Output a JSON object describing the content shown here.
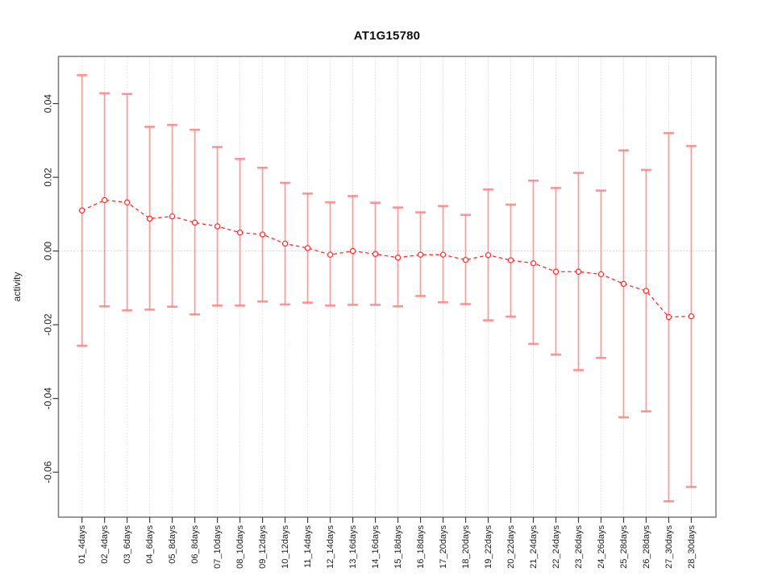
{
  "chart_data": {
    "type": "scatter",
    "title": "AT1G15780",
    "xlabel": "",
    "ylabel": "activity",
    "legend": "none",
    "grid": {
      "vertical_dotted_per_category": true,
      "horizontal_dotted_at_zero": true
    },
    "ylim": [
      -0.0722,
      0.0528
    ],
    "y_ticks": [
      0.04,
      0.02,
      0,
      -0.02,
      -0.04,
      -0.06
    ],
    "y_tick_labels": [
      "0.04",
      "0.02",
      "0.00",
      "-0.02",
      "-0.04",
      "-0.06"
    ],
    "categories": [
      "01_4days",
      "02_4days",
      "03_6days",
      "04_6days",
      "05_8days",
      "06_8days",
      "07_10days",
      "08_10days",
      "09_12days",
      "10_12days",
      "11_14days",
      "12_14days",
      "13_16days",
      "14_16days",
      "15_18days",
      "16_18days",
      "17_20days",
      "18_20days",
      "19_22days",
      "20_22days",
      "21_24days",
      "22_24days",
      "23_26days",
      "24_26days",
      "25_28days",
      "26_28days",
      "27_30days",
      "28_30days"
    ],
    "series": [
      {
        "name": "mean",
        "values": [
          0.011,
          0.0138,
          0.0132,
          0.0088,
          0.0094,
          0.0077,
          0.0067,
          0.005,
          0.0045,
          0.002,
          0.0008,
          -0.001,
          0.0,
          -0.0008,
          -0.0018,
          -0.001,
          -0.001,
          -0.0024,
          -0.0011,
          -0.0025,
          -0.0033,
          -0.0056,
          -0.0056,
          -0.0063,
          -0.0089,
          -0.0108,
          -0.0179,
          -0.0177
        ]
      },
      {
        "name": "upper_error",
        "values": [
          0.0477,
          0.0428,
          0.0426,
          0.0337,
          0.0342,
          0.0329,
          0.0282,
          0.025,
          0.0226,
          0.0185,
          0.0156,
          0.0132,
          0.0149,
          0.0131,
          0.0118,
          0.0105,
          0.0122,
          0.0098,
          0.0167,
          0.0126,
          0.0191,
          0.0171,
          0.0212,
          0.0164,
          0.0273,
          0.022,
          0.032,
          0.0285
        ]
      },
      {
        "name": "lower_error",
        "values": [
          -0.0257,
          -0.015,
          -0.0161,
          -0.0159,
          -0.0151,
          -0.0172,
          -0.0148,
          -0.0148,
          -0.0137,
          -0.0145,
          -0.014,
          -0.0148,
          -0.0146,
          -0.0146,
          -0.015,
          -0.0122,
          -0.0139,
          -0.0144,
          -0.0188,
          -0.0178,
          -0.0252,
          -0.0281,
          -0.0323,
          -0.029,
          -0.0451,
          -0.0435,
          -0.0679,
          -0.064
        ]
      }
    ],
    "colors": {
      "point_and_line": "#ff2b2b",
      "error_bar": "#ff8080",
      "grid_line": "#dcdcdc",
      "zero_line": "#c9c9c9",
      "plot_border": "#808080",
      "tick_mark": "#3c3c3c",
      "text": "#1d1d1d"
    }
  }
}
